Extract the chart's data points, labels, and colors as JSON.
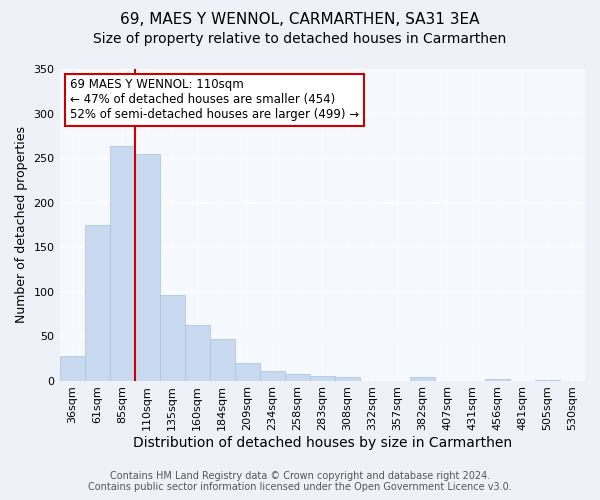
{
  "title": "69, MAES Y WENNOL, CARMARTHEN, SA31 3EA",
  "subtitle": "Size of property relative to detached houses in Carmarthen",
  "xlabel": "Distribution of detached houses by size in Carmarthen",
  "ylabel": "Number of detached properties",
  "bar_labels": [
    "36sqm",
    "61sqm",
    "85sqm",
    "110sqm",
    "135sqm",
    "160sqm",
    "184sqm",
    "209sqm",
    "234sqm",
    "258sqm",
    "283sqm",
    "308sqm",
    "332sqm",
    "357sqm",
    "382sqm",
    "407sqm",
    "431sqm",
    "456sqm",
    "481sqm",
    "505sqm",
    "530sqm"
  ],
  "bar_heights": [
    28,
    175,
    264,
    255,
    96,
    62,
    47,
    20,
    11,
    7,
    5,
    4,
    0,
    0,
    4,
    0,
    0,
    2,
    0,
    1,
    0
  ],
  "bar_color": "#c9d9f0",
  "bar_edge_color": "#a8c0e0",
  "vline_x_index": 3,
  "vline_color": "#cc0000",
  "annotation_title": "69 MAES Y WENNOL: 110sqm",
  "annotation_line1": "← 47% of detached houses are smaller (454)",
  "annotation_line2": "52% of semi-detached houses are larger (499) →",
  "annotation_box_color": "#ffffff",
  "annotation_box_edge_color": "#cc0000",
  "ylim": [
    0,
    350
  ],
  "yticks": [
    0,
    50,
    100,
    150,
    200,
    250,
    300,
    350
  ],
  "footer_line1": "Contains HM Land Registry data © Crown copyright and database right 2024.",
  "footer_line2": "Contains public sector information licensed under the Open Government Licence v3.0.",
  "bg_color": "#eef2f8",
  "plot_bg_color": "#f5f8fd",
  "grid_color": "#ffffff",
  "title_fontsize": 11,
  "subtitle_fontsize": 10,
  "xlabel_fontsize": 10,
  "ylabel_fontsize": 9,
  "footer_fontsize": 7,
  "tick_fontsize": 8,
  "annotation_fontsize": 8.5
}
